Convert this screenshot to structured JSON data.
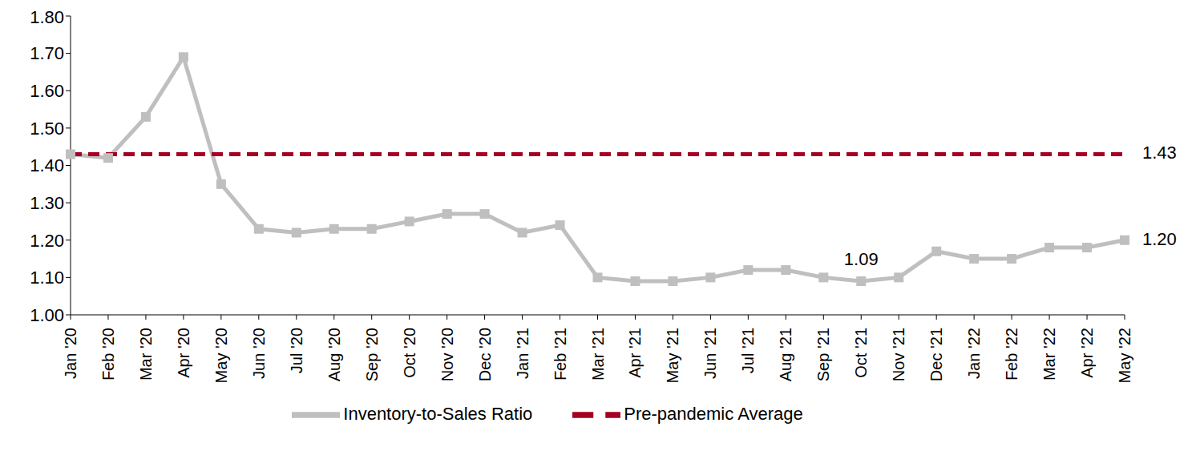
{
  "chart_data": {
    "type": "line",
    "categories": [
      "Jan '20",
      "Feb '20",
      "Mar '20",
      "Apr '20",
      "May '20",
      "Jun '20",
      "Jul '20",
      "Aug '20",
      "Sep '20",
      "Oct '20",
      "Nov '20",
      "Dec '20",
      "Jan '21",
      "Feb '21",
      "Mar '21",
      "Apr '21",
      "May '21",
      "Jun '21",
      "Jul '21",
      "Aug '21",
      "Sep '21",
      "Oct '21",
      "Nov '21",
      "Dec '21",
      "Jan '22",
      "Feb '22",
      "Mar '22",
      "Apr '22",
      "May '22"
    ],
    "series": [
      {
        "name": "Inventory-to-Sales Ratio",
        "color": "#BFBFBF",
        "marker": "square",
        "line_style": "solid",
        "values": [
          1.43,
          1.42,
          1.53,
          1.69,
          1.35,
          1.23,
          1.22,
          1.23,
          1.23,
          1.25,
          1.27,
          1.27,
          1.22,
          1.24,
          1.1,
          1.09,
          1.09,
          1.1,
          1.12,
          1.12,
          1.1,
          1.09,
          1.1,
          1.17,
          1.15,
          1.15,
          1.18,
          1.18,
          1.2
        ],
        "value_labels": [
          null,
          null,
          null,
          null,
          null,
          null,
          null,
          null,
          null,
          null,
          null,
          null,
          null,
          null,
          null,
          null,
          null,
          null,
          null,
          null,
          null,
          "1.09",
          null,
          null,
          null,
          null,
          null,
          null,
          "1.20"
        ]
      },
      {
        "name": "Pre-pandemic Average",
        "color": "#A50021",
        "line_style": "dashed",
        "values": [
          1.43,
          1.43,
          1.43,
          1.43,
          1.43,
          1.43,
          1.43,
          1.43,
          1.43,
          1.43,
          1.43,
          1.43,
          1.43,
          1.43,
          1.43,
          1.43,
          1.43,
          1.43,
          1.43,
          1.43,
          1.43,
          1.43,
          1.43,
          1.43,
          1.43,
          1.43,
          1.43,
          1.43,
          1.43
        ],
        "value_labels": [
          null,
          null,
          null,
          null,
          null,
          null,
          null,
          null,
          null,
          null,
          null,
          null,
          null,
          null,
          null,
          null,
          null,
          null,
          null,
          null,
          null,
          null,
          null,
          null,
          null,
          null,
          null,
          null,
          "1.43"
        ]
      }
    ],
    "ylim": [
      1,
      1.8
    ],
    "yticks": [
      {
        "value": 1,
        "label": "1.00"
      },
      {
        "value": 1.1,
        "label": "1.10"
      },
      {
        "value": 1.2,
        "label": "1.20"
      },
      {
        "value": 1.3,
        "label": "1.30"
      },
      {
        "value": 1.4,
        "label": "1.40"
      },
      {
        "value": 1.5,
        "label": "1.50"
      },
      {
        "value": 1.6,
        "label": "1.60"
      },
      {
        "value": 1.7,
        "label": "1.70"
      },
      {
        "value": 1.8,
        "label": "1.80"
      }
    ],
    "grid": false,
    "legend": "bottom"
  }
}
